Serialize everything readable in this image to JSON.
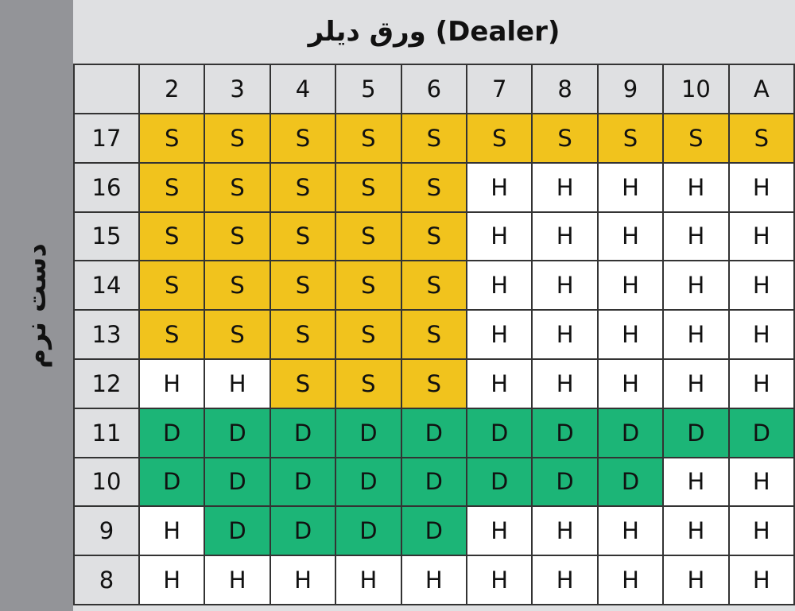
{
  "title": "ورق دیلر (Dealer)",
  "side_label": "دست نرم",
  "colors": {
    "S": "#f1c31d",
    "H": "#ffffff",
    "D": "#1cb577",
    "header": "#dfe0e2",
    "side": "#939498"
  },
  "dealer_cards": [
    "2",
    "3",
    "4",
    "5",
    "6",
    "7",
    "8",
    "9",
    "10",
    "A"
  ],
  "rows": [
    {
      "hand": "17",
      "actions": [
        "S",
        "S",
        "S",
        "S",
        "S",
        "S",
        "S",
        "S",
        "S",
        "S"
      ]
    },
    {
      "hand": "16",
      "actions": [
        "S",
        "S",
        "S",
        "S",
        "S",
        "H",
        "H",
        "H",
        "H",
        "H"
      ]
    },
    {
      "hand": "15",
      "actions": [
        "S",
        "S",
        "S",
        "S",
        "S",
        "H",
        "H",
        "H",
        "H",
        "H"
      ]
    },
    {
      "hand": "14",
      "actions": [
        "S",
        "S",
        "S",
        "S",
        "S",
        "H",
        "H",
        "H",
        "H",
        "H"
      ]
    },
    {
      "hand": "13",
      "actions": [
        "S",
        "S",
        "S",
        "S",
        "S",
        "H",
        "H",
        "H",
        "H",
        "H"
      ]
    },
    {
      "hand": "12",
      "actions": [
        "H",
        "H",
        "S",
        "S",
        "S",
        "H",
        "H",
        "H",
        "H",
        "H"
      ]
    },
    {
      "hand": "11",
      "actions": [
        "D",
        "D",
        "D",
        "D",
        "D",
        "D",
        "D",
        "D",
        "D",
        "D"
      ]
    },
    {
      "hand": "10",
      "actions": [
        "D",
        "D",
        "D",
        "D",
        "D",
        "D",
        "D",
        "D",
        "H",
        "H"
      ]
    },
    {
      "hand": "9",
      "actions": [
        "H",
        "D",
        "D",
        "D",
        "D",
        "H",
        "H",
        "H",
        "H",
        "H"
      ]
    },
    {
      "hand": "8",
      "actions": [
        "H",
        "H",
        "H",
        "H",
        "H",
        "H",
        "H",
        "H",
        "H",
        "H"
      ]
    }
  ]
}
